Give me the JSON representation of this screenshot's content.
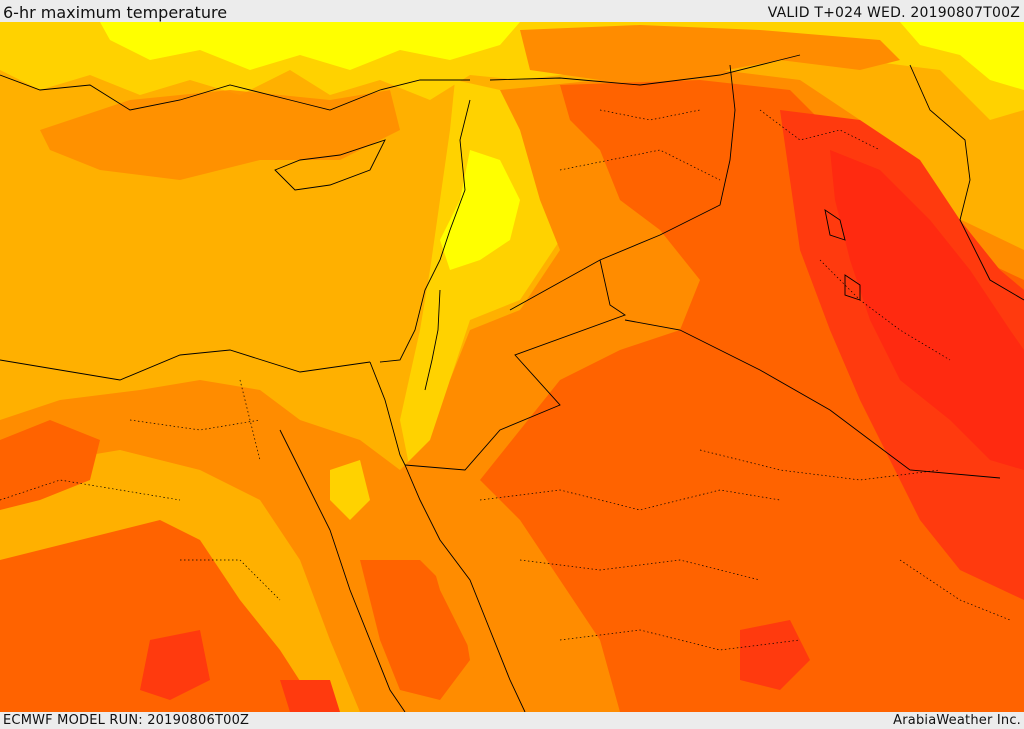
{
  "header": {
    "title": "6-hr maximum temperature",
    "valid_label": "VALID T+024 WED. 20190807T00Z"
  },
  "footer": {
    "model_run": "ECMWF MODEL RUN: 20190806T00Z",
    "credit": "ArabiaWeather Inc."
  },
  "palette": {
    "sea_orange": "#ffb000",
    "warm_orange": "#ff8c00",
    "hot_orange": "#ff6300",
    "very_hot_red": "#ff3a0e",
    "mild_yellow": "#ffd200",
    "cool_yellow": "#ffff00",
    "border_color": "#000000"
  }
}
